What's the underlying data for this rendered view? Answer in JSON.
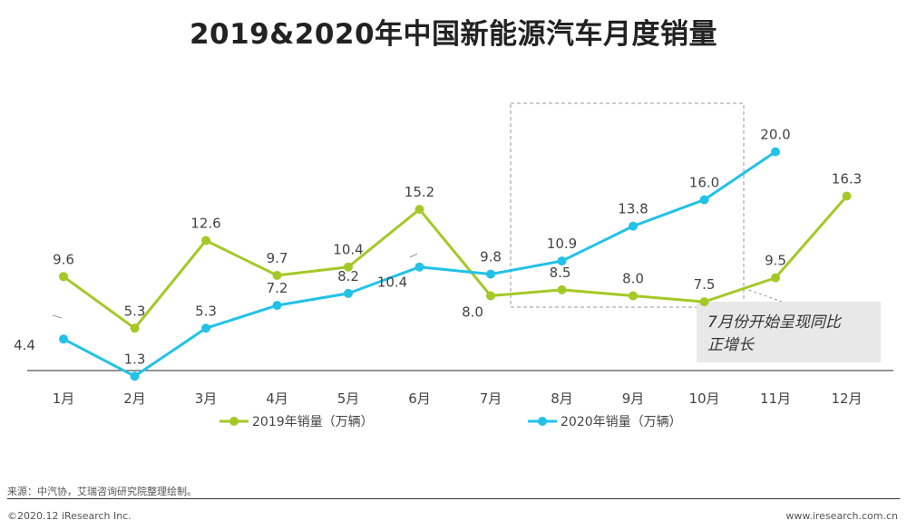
{
  "page": {
    "title": "2019&2020年中国新能源汽车月度销量",
    "source": "来源：中汽协，艾瑞咨询研究院整理绘制。",
    "copyright": "©2020.12 iResearch Inc.",
    "website": "www.iresearch.com.cn"
  },
  "chart_data": {
    "type": "line",
    "categories": [
      "1月",
      "2月",
      "3月",
      "4月",
      "5月",
      "6月",
      "7月",
      "8月",
      "9月",
      "10月",
      "11月",
      "12月"
    ],
    "series": [
      {
        "name": "2019年销量（万辆）",
        "color": "#a3c926",
        "values": [
          9.6,
          5.3,
          12.6,
          9.7,
          10.4,
          15.2,
          8.0,
          8.5,
          8.0,
          7.5,
          9.5,
          16.3
        ]
      },
      {
        "name": "2020年销量（万辆）",
        "color": "#22c2e8",
        "values": [
          4.4,
          1.3,
          5.3,
          7.2,
          8.2,
          10.4,
          9.8,
          10.9,
          13.8,
          16.0,
          20.0,
          null
        ]
      }
    ],
    "annotation": "7月份开始呈现同比正增长",
    "legend": "bottom",
    "grid": false
  }
}
